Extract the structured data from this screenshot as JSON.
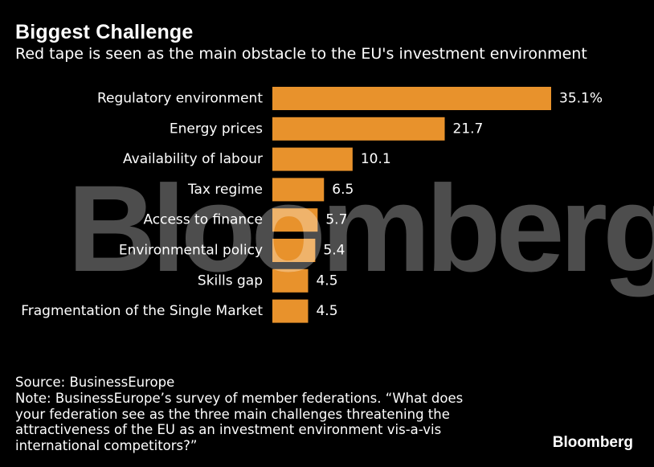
{
  "header": {
    "title": "Biggest Challenge",
    "subtitle": "Red tape is seen as the main obstacle to the EU's investment environment"
  },
  "watermark": "Bloomberg",
  "chart_data": {
    "type": "bar",
    "orientation": "horizontal",
    "title": "Biggest Challenge",
    "subtitle": "Red tape is seen as the main obstacle to the EU's investment environment",
    "categories": [
      "Regulatory environment",
      "Energy prices",
      "Availability of labour",
      "Tax regime",
      "Access to finance",
      "Environmental policy",
      "Skills gap",
      "Fragmentation of the Single Market"
    ],
    "values": [
      35.1,
      21.7,
      10.1,
      6.5,
      5.7,
      5.4,
      4.5,
      4.5
    ],
    "value_labels": [
      "35.1%",
      "21.7",
      "10.1",
      "6.5",
      "5.7",
      "5.4",
      "4.5",
      "4.5"
    ],
    "unit": "%",
    "xlim": [
      0,
      35.1
    ],
    "bar_color": "#e8922c",
    "xlabel": "",
    "ylabel": "",
    "grid": false,
    "legend": "none"
  },
  "footer": {
    "source": "Source: BusinessEurope",
    "note": "Note: BusinessEurope’s survey of member federations. “What does your federation see as the three main challenges threatening the attractiveness of the EU as an investment environment vis-a-vis international competitors?”",
    "brand": "Bloomberg"
  }
}
